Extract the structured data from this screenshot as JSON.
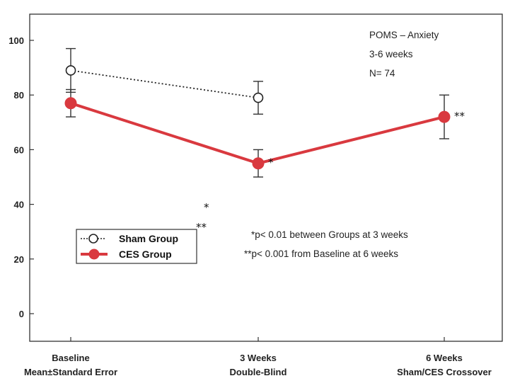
{
  "chart_data": {
    "type": "line",
    "categories": [
      "Baseline",
      "3 Weeks",
      "6 Weeks"
    ],
    "category_sublabels": [
      "Mean±Standard Error",
      "Double-Blind",
      "Sham/CES Crossover"
    ],
    "ylim": [
      -10,
      110
    ],
    "yticks": [
      0,
      20,
      40,
      60,
      80,
      100
    ],
    "grid": false,
    "legend_position": "left",
    "series": [
      {
        "name": "Sham Group",
        "values": [
          89,
          79,
          null
        ],
        "errors": [
          8,
          6,
          null
        ],
        "color": "#222222",
        "line_style": "dotted",
        "marker": "open-circle"
      },
      {
        "name": "CES Group",
        "values": [
          77,
          55,
          72
        ],
        "errors": [
          5,
          5,
          8
        ],
        "color": "#d9393f",
        "line_style": "solid",
        "marker": "filled-circle"
      }
    ],
    "annotations": {
      "info": [
        "POMS – Anxiety",
        "3-6 weeks",
        "N= 74"
      ],
      "point_marks": [
        {
          "series": "CES Group",
          "index": 1,
          "text": "*"
        },
        {
          "series": "CES Group",
          "index": 2,
          "text": "**"
        }
      ],
      "stray_marks": [
        "*",
        "**"
      ],
      "footnotes": [
        "*p< 0.01 between Groups at 3 weeks",
        "**p< 0.001 from Baseline at 6 weeks"
      ]
    }
  }
}
